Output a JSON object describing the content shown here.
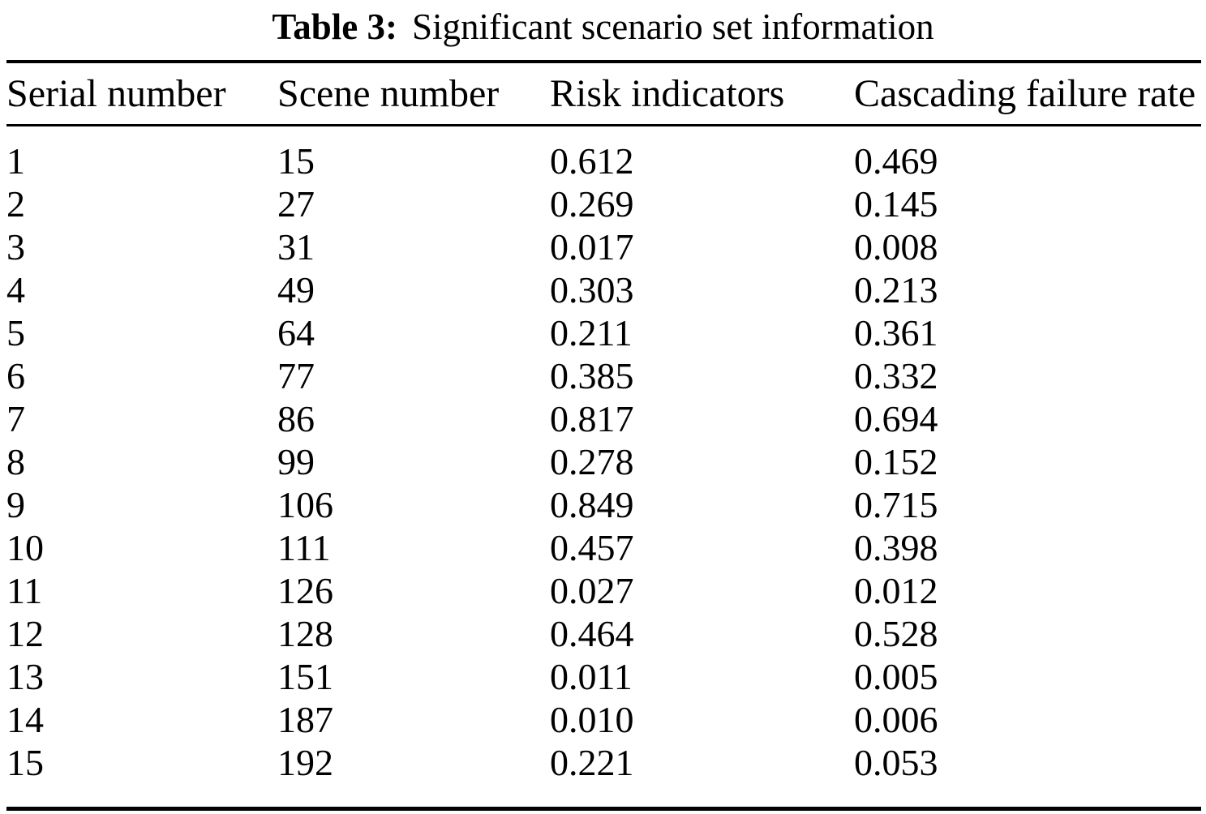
{
  "caption": {
    "label": "Table 3:",
    "text": "Significant scenario set information"
  },
  "table": {
    "columns": [
      "Serial number",
      "Scene number",
      "Risk indicators",
      "Cascading failure rate"
    ],
    "rows": [
      [
        "1",
        "15",
        "0.612",
        "0.469"
      ],
      [
        "2",
        "27",
        "0.269",
        "0.145"
      ],
      [
        "3",
        "31",
        "0.017",
        "0.008"
      ],
      [
        "4",
        "49",
        "0.303",
        "0.213"
      ],
      [
        "5",
        "64",
        "0.211",
        "0.361"
      ],
      [
        "6",
        "77",
        "0.385",
        "0.332"
      ],
      [
        "7",
        "86",
        "0.817",
        "0.694"
      ],
      [
        "8",
        "99",
        "0.278",
        "0.152"
      ],
      [
        "9",
        "106",
        "0.849",
        "0.715"
      ],
      [
        "10",
        "111",
        "0.457",
        "0.398"
      ],
      [
        "11",
        "126",
        "0.027",
        "0.012"
      ],
      [
        "12",
        "128",
        "0.464",
        "0.528"
      ],
      [
        "13",
        "151",
        "0.011",
        "0.005"
      ],
      [
        "14",
        "187",
        "0.010",
        "0.006"
      ],
      [
        "15",
        "192",
        "0.221",
        "0.053"
      ]
    ]
  },
  "colors": {
    "background": "#ffffff",
    "text": "#000000",
    "rule": "#000000"
  }
}
